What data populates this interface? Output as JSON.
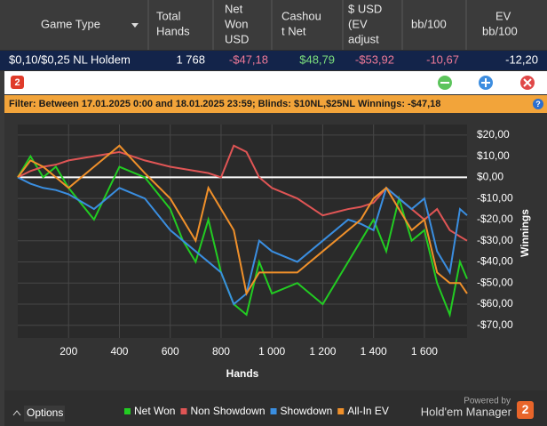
{
  "app": {
    "header": [
      "Game Type",
      [
        "Total",
        "Hands"
      ],
      [
        "Net",
        "Won",
        "USD"
      ],
      [
        "Cashou",
        "t Net"
      ],
      [
        "$ USD",
        "(EV",
        "adjust"
      ],
      "bb/100",
      [
        "EV",
        "bb/100"
      ]
    ],
    "row": [
      "$0,10/$0,25 NL Holdem",
      "1 768",
      "-$47,18",
      "$48,79",
      "-$53,92",
      "-10,67",
      "-12,20"
    ],
    "logo_text": "2",
    "filter": "Filter: Between 17.01.2025 0:00 and 18.01.2025 23:59; Blinds: $10NL,$25NL Winnings: -$47,18",
    "options": "Options",
    "powered_by": "Powered by",
    "brand": "Hold'em Manager"
  },
  "chart_data": {
    "type": "line",
    "x_label": "Hands",
    "y_label": "Winnings",
    "x": [
      0,
      50,
      100,
      150,
      200,
      300,
      400,
      500,
      600,
      650,
      700,
      750,
      800,
      850,
      900,
      950,
      1000,
      1100,
      1200,
      1300,
      1350,
      1400,
      1450,
      1500,
      1550,
      1600,
      1650,
      1700,
      1740,
      1768
    ],
    "series": [
      {
        "name": "Net Won",
        "color": "#22cc22",
        "values": [
          0,
          10,
          0,
          5,
          -5,
          -20,
          5,
          0,
          -15,
          -30,
          -40,
          -20,
          -45,
          -60,
          -65,
          -40,
          -55,
          -50,
          -60,
          -40,
          -30,
          -20,
          -35,
          -10,
          -30,
          -25,
          -50,
          -65,
          -40,
          -48
        ]
      },
      {
        "name": "Non Showdown",
        "color": "#e05555",
        "values": [
          0,
          3,
          5,
          6,
          8,
          10,
          12,
          8,
          5,
          4,
          3,
          2,
          0,
          15,
          12,
          0,
          -5,
          -10,
          -18,
          -15,
          -14,
          -12,
          -5,
          -10,
          -15,
          -20,
          -15,
          -25,
          -28,
          -30
        ]
      },
      {
        "name": "Showdown",
        "color": "#3a8ee0",
        "values": [
          0,
          -3,
          -5,
          -6,
          -8,
          -15,
          -5,
          -10,
          -25,
          -30,
          -35,
          -40,
          -45,
          -60,
          -55,
          -30,
          -35,
          -40,
          -30,
          -20,
          -22,
          -25,
          -5,
          -10,
          -15,
          -10,
          -35,
          -45,
          -15,
          -18
        ]
      },
      {
        "name": "All-In EV",
        "color": "#f0902a",
        "values": [
          0,
          8,
          5,
          0,
          -5,
          5,
          15,
          2,
          -10,
          -20,
          -30,
          -5,
          -15,
          -25,
          -55,
          -45,
          -45,
          -45,
          -35,
          -25,
          -20,
          -10,
          -5,
          -15,
          -25,
          -20,
          -45,
          -50,
          -50,
          -55
        ]
      }
    ],
    "xlim": [
      0,
      1768
    ],
    "xticks": [
      200,
      400,
      600,
      800,
      {
        "value": 1000,
        "label": "1 000"
      },
      {
        "value": 1200,
        "label": "1 200"
      },
      {
        "value": 1400,
        "label": "1 400"
      },
      {
        "value": 1600,
        "label": "1 600"
      }
    ],
    "ylim": [
      -76,
      25
    ],
    "yticks": [
      {
        "value": 20,
        "label": "$20,00"
      },
      {
        "value": 10,
        "label": "$10,00"
      },
      {
        "value": 0,
        "label": "$0,00"
      },
      {
        "value": -10,
        "label": "-$10,00"
      },
      {
        "value": -20,
        "label": "-$20,00"
      },
      {
        "value": -30,
        "label": "-$30,00"
      },
      {
        "value": -40,
        "label": "-$40,00"
      },
      {
        "value": -50,
        "label": "-$50,00"
      },
      {
        "value": -60,
        "label": "-$60,00"
      },
      {
        "value": -70,
        "label": "-$70,00"
      }
    ],
    "grid": true
  }
}
